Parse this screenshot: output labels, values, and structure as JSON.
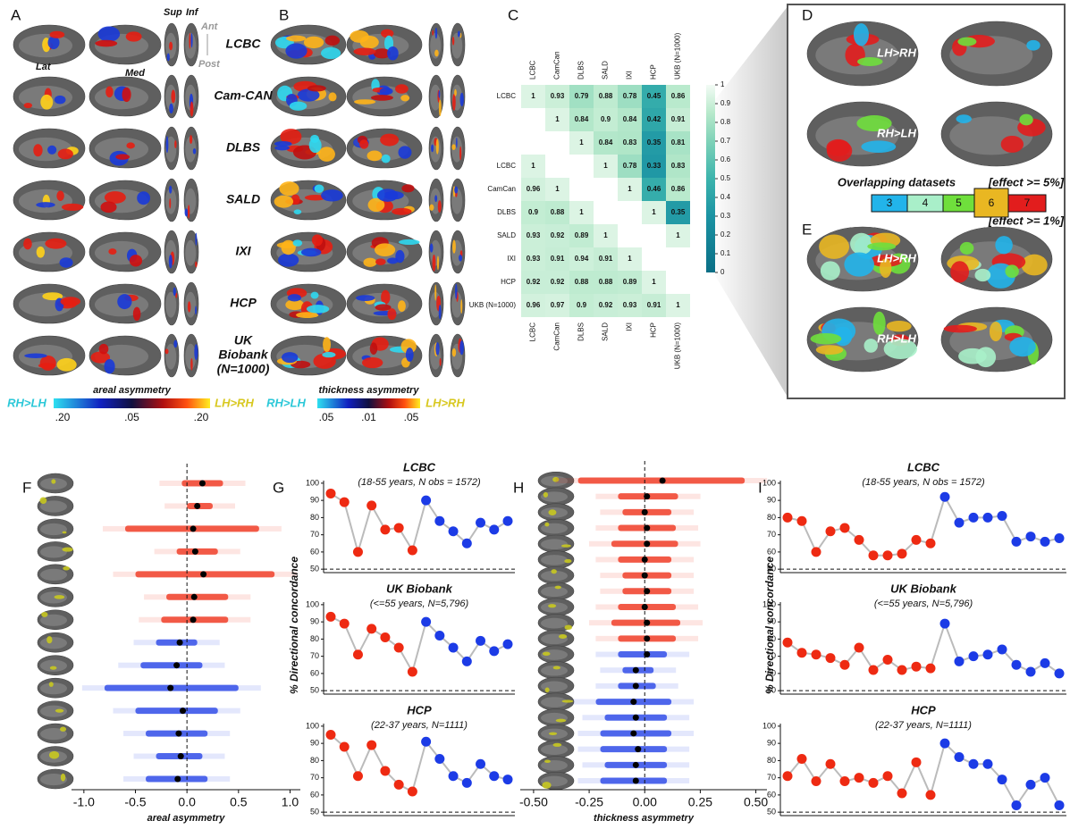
{
  "panel_letters": [
    "A",
    "B",
    "C",
    "D",
    "E",
    "F",
    "G",
    "H",
    "I"
  ],
  "datasets": [
    [
      "LCBC"
    ],
    [
      "Cam-CAN"
    ],
    [
      "DLBS"
    ],
    [
      "SALD"
    ],
    [
      "IXI"
    ],
    [
      "HCP"
    ],
    [
      "UK",
      "Biobank",
      "(N=1000)"
    ]
  ],
  "view_labels": {
    "sup": "Sup",
    "inf": "Inf",
    "ant": "Ant",
    "post": "Post",
    "lat": "Lat",
    "med": "Med"
  },
  "colorbar_a": {
    "title": "areal asymmetry",
    "left": "RH>LH",
    "right": "LH>RH",
    "ticks": [
      ".20",
      ".05",
      ".20"
    ]
  },
  "colorbar_b": {
    "title": "thickness asymmetry",
    "left": "RH>LH",
    "right": "LH>RH",
    "ticks": [
      ".05",
      ".01",
      ".05"
    ]
  },
  "panel_d": {
    "rows": [
      "LH>RH",
      "RH>LH"
    ],
    "legend_title": "Overlapping datasets",
    "levels": [
      "3",
      "4",
      "5",
      "6",
      "7"
    ],
    "level_colors": [
      "#22b4ea",
      "#a9efc9",
      "#6fdf3c",
      "#e9b722",
      "#e21d1d"
    ],
    "effect_top": "[effect >= 5%]",
    "effect_bottom": "[effect >= 1%]"
  },
  "panel_e": {
    "rows": [
      "LH>RH",
      "RH>LH"
    ]
  },
  "chart_data": [
    {
      "type": "heatmap",
      "categories": [
        "LCBC",
        "CamCan",
        "DLBS",
        "SALD",
        "IXI",
        "HCP",
        "UKB (N=1000)"
      ],
      "upper": [
        [
          1,
          0.93,
          0.79,
          0.88,
          0.78,
          0.45,
          0.86
        ],
        [
          1,
          0.84,
          0.9,
          0.84,
          0.42,
          0.91
        ],
        [
          1,
          0.84,
          0.83,
          0.35,
          0.81
        ],
        [
          1,
          0.78,
          0.33,
          0.83
        ],
        [
          1,
          0.46,
          0.86
        ],
        [
          1,
          0.35
        ],
        [
          1
        ]
      ],
      "lower": [
        [
          1
        ],
        [
          0.96,
          1
        ],
        [
          0.9,
          0.88,
          1
        ],
        [
          0.93,
          0.92,
          0.89,
          1
        ],
        [
          0.93,
          0.91,
          0.94,
          0.91,
          1
        ],
        [
          0.92,
          0.92,
          0.88,
          0.88,
          0.89,
          1
        ],
        [
          0.96,
          0.97,
          0.9,
          0.92,
          0.93,
          0.91,
          1
        ]
      ],
      "zlim": [
        0,
        1
      ],
      "zticks": [
        0,
        0.1,
        0.2,
        0.3,
        0.4,
        0.5,
        0.6,
        0.7,
        0.8,
        0.9,
        1
      ]
    },
    {
      "type": "strip",
      "xlabel": "areal asymmetry",
      "xlim": [
        -1.12,
        1.1
      ],
      "xticks": [
        {
          "value": -1,
          "label": "-1.0"
        },
        -0.5,
        {
          "value": 0,
          "label": "0.0"
        },
        0.5,
        {
          "value": 1,
          "label": "1.0"
        }
      ],
      "reference_line": 0,
      "series": [
        {
          "color": "#ee2a12",
          "values": [
            0.15,
            0.1,
            0.06,
            0.08,
            0.16,
            0.07,
            0.06
          ],
          "lows": [
            -0.05,
            0,
            -0.6,
            -0.1,
            -0.5,
            -0.2,
            -0.25
          ],
          "highs": [
            0.35,
            0.25,
            0.7,
            0.3,
            0.85,
            0.4,
            0.4
          ]
        },
        {
          "color": "#1c3be6",
          "values": [
            -0.07,
            -0.1,
            -0.16,
            -0.04,
            -0.08,
            -0.06,
            -0.09
          ],
          "lows": [
            -0.3,
            -0.45,
            -0.8,
            -0.5,
            -0.4,
            -0.3,
            -0.4
          ],
          "highs": [
            0.1,
            0.15,
            0.5,
            0.3,
            0.2,
            0.15,
            0.2
          ]
        }
      ]
    },
    {
      "type": "line",
      "ylabel": "% Directional concordance",
      "ylim": [
        48,
        101.5
      ],
      "yticks": [
        50,
        60,
        70,
        80,
        90,
        100
      ],
      "reference_line": 50,
      "panels": [
        {
          "title": "LCBC",
          "subtitle": "(18-55 years, N obs = 1572)",
          "series": [
            {
              "color": "#ee2a12",
              "values": [
                94,
                89,
                60,
                87,
                73,
                74,
                61,
                null,
                null,
                null,
                null,
                null,
                null,
                null
              ]
            },
            {
              "color": "#1c3be6",
              "values": [
                null,
                null,
                null,
                null,
                null,
                null,
                null,
                90,
                78,
                72,
                65,
                77,
                73,
                78
              ]
            }
          ]
        },
        {
          "title": "UK Biobank",
          "subtitle": "(<=55 years, N=5,796)",
          "series": [
            {
              "color": "#ee2a12",
              "values": [
                93,
                89,
                71,
                86,
                81,
                75,
                61,
                null,
                null,
                null,
                null,
                null,
                null,
                null
              ]
            },
            {
              "color": "#1c3be6",
              "values": [
                null,
                null,
                null,
                null,
                null,
                null,
                null,
                90,
                82,
                75,
                67,
                79,
                73,
                77
              ]
            }
          ]
        },
        {
          "title": "HCP",
          "subtitle": "(22-37 years, N=1111)",
          "series": [
            {
              "color": "#ee2a12",
              "values": [
                95,
                88,
                71,
                89,
                74,
                66,
                62,
                null,
                null,
                null,
                null,
                null,
                null,
                null
              ]
            },
            {
              "color": "#1c3be6",
              "values": [
                null,
                null,
                null,
                null,
                null,
                null,
                null,
                91,
                81,
                71,
                67,
                78,
                71,
                69
              ]
            }
          ]
        }
      ]
    },
    {
      "type": "strip",
      "xlabel": "thickness asymmetry",
      "xlim": [
        -0.56,
        0.55
      ],
      "xticks": [
        {
          "value": -0.5,
          "label": "-0.50"
        },
        -0.25,
        {
          "value": 0,
          "label": "0.00"
        },
        0.25,
        {
          "value": 0.5,
          "label": "0.50"
        }
      ],
      "reference_line": 0,
      "series": [
        {
          "color": "#ee2a12",
          "values": [
            0.08,
            0.01,
            0,
            0.01,
            0.01,
            0,
            0,
            0.01,
            0,
            0.01,
            0.01
          ],
          "lows": [
            -0.3,
            -0.12,
            -0.1,
            -0.12,
            -0.15,
            -0.12,
            -0.1,
            -0.1,
            -0.12,
            -0.15,
            -0.12
          ],
          "highs": [
            0.45,
            0.15,
            0.12,
            0.14,
            0.15,
            0.12,
            0.12,
            0.12,
            0.14,
            0.16,
            0.14
          ]
        },
        {
          "color": "#1c3be6",
          "values": [
            0.01,
            -0.04,
            -0.04,
            -0.05,
            -0.04,
            -0.05,
            -0.03,
            -0.04,
            -0.04
          ],
          "lows": [
            -0.12,
            -0.1,
            -0.12,
            -0.22,
            -0.18,
            -0.2,
            -0.2,
            -0.18,
            -0.2
          ],
          "highs": [
            0.1,
            0.04,
            0.05,
            0.12,
            0.1,
            0.12,
            0.1,
            0.1,
            0.1
          ]
        }
      ]
    },
    {
      "type": "line",
      "ylabel": "% Directional concordance",
      "ylim": [
        48,
        101.5
      ],
      "yticks": [
        50,
        60,
        70,
        80,
        90,
        100
      ],
      "reference_line": 50,
      "panels": [
        {
          "title": "LCBC",
          "subtitle": "(18-55 years, N obs = 1572)",
          "series": [
            {
              "color": "#ee2a12",
              "values": [
                80,
                78,
                60,
                72,
                74,
                67,
                58,
                58,
                59,
                67,
                65,
                null,
                null,
                null,
                null,
                null,
                null,
                null,
                null,
                null
              ]
            },
            {
              "color": "#1c3be6",
              "values": [
                null,
                null,
                null,
                null,
                null,
                null,
                null,
                null,
                null,
                null,
                null,
                92,
                77,
                80,
                80,
                81,
                66,
                69,
                66,
                68
              ]
            }
          ]
        },
        {
          "title": "UK Biobank",
          "subtitle": "(<=55 years, N=5,796)",
          "series": [
            {
              "color": "#ee2a12",
              "values": [
                78,
                72,
                71,
                69,
                65,
                75,
                62,
                68,
                62,
                64,
                63,
                null,
                null,
                null,
                null,
                null,
                null,
                null,
                null,
                null
              ]
            },
            {
              "color": "#1c3be6",
              "values": [
                null,
                null,
                null,
                null,
                null,
                null,
                null,
                null,
                null,
                null,
                null,
                89,
                67,
                70,
                71,
                74,
                65,
                61,
                66,
                60
              ]
            }
          ]
        },
        {
          "title": "HCP",
          "subtitle": "(22-37 years, N=1111)",
          "series": [
            {
              "color": "#ee2a12",
              "values": [
                71,
                81,
                68,
                78,
                68,
                70,
                67,
                71,
                61,
                79,
                60,
                null,
                null,
                null,
                null,
                null,
                null,
                null,
                null,
                null
              ]
            },
            {
              "color": "#1c3be6",
              "values": [
                null,
                null,
                null,
                null,
                null,
                null,
                null,
                null,
                null,
                null,
                null,
                90,
                82,
                78,
                78,
                69,
                54,
                66,
                70,
                54
              ]
            }
          ]
        }
      ]
    }
  ]
}
